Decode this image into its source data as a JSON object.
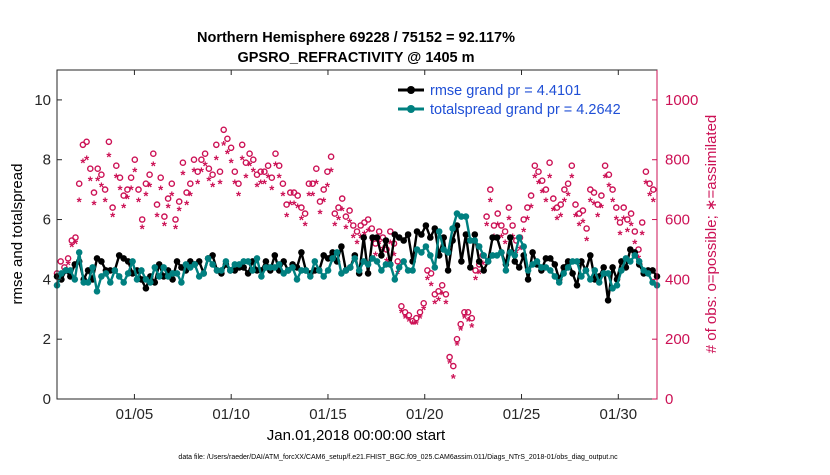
{
  "chart_data": {
    "type": "line",
    "title_line1": "Northern Hemisphere 69228 / 75152 = 92.117%",
    "title_line2": "GPSRO_REFRACTIVITY @ 1405 m",
    "ylabel_left": "rmse and totalspread",
    "ylabel_right": "# of obs: o=possible; ∗=assimilated",
    "xlabel": "Jan.01,2018 00:00:00 start",
    "footnote": "data file: /Users/raeder/DAI/ATM_forcXX/CAM6_setup/f.e21.FHIST_BGC.f09_025.CAM6assim.011/Diags_NTrS_2018-01/obs_diag_output.nc",
    "x_range_days": [
      0,
      31
    ],
    "x_tick_days": [
      4,
      9,
      14,
      19,
      24,
      29
    ],
    "x_tick_labels": [
      "01/05",
      "01/10",
      "01/15",
      "01/20",
      "01/25",
      "01/30"
    ],
    "ylim_left": [
      0,
      11
    ],
    "y_ticks_left": [
      0,
      2,
      4,
      6,
      8,
      10
    ],
    "ylim_right": [
      0,
      1100
    ],
    "y_ticks_right": [
      0,
      200,
      400,
      600,
      800,
      1000
    ],
    "legend": [
      {
        "name": "rmse grand pr = 4.4101",
        "color": "#000000"
      },
      {
        "name": "totalspread grand pr = 4.2642",
        "color": "#008080"
      }
    ],
    "colors": {
      "rmse": "#000000",
      "spread": "#008080",
      "obs": "#cc1155",
      "legend_text": "#1f4fd6"
    },
    "series": [
      {
        "name": "rmse",
        "axis": "left",
        "values": [
          4.1,
          4.0,
          4.3,
          4.1,
          4.5,
          4.6,
          4.0,
          4.3,
          4.0,
          4.7,
          4.6,
          4.3,
          4.3,
          4.3,
          4.8,
          4.7,
          4.6,
          4.2,
          4.3,
          4.0,
          3.7,
          4.1,
          3.9,
          4.5,
          4.1,
          4.3,
          4.0,
          4.6,
          4.4,
          4.3,
          4.6,
          4.5,
          4.6,
          4.2,
          4.7,
          4.8,
          4.3,
          4.2,
          4.5,
          4.3,
          4.3,
          4.4,
          4.4,
          4.2,
          4.6,
          4.3,
          4.3,
          4.6,
          4.3,
          4.8,
          4.3,
          4.6,
          4.3,
          4.5,
          4.4,
          4.9,
          4.3,
          4.2,
          4.3,
          4.3,
          4.8,
          4.7,
          4.9,
          4.6,
          5.1,
          4.3,
          4.4,
          4.8,
          4.2,
          5.4,
          4.2,
          5.4,
          5.4,
          4.8,
          5.3,
          4.5,
          5.5,
          5.4,
          5.3,
          5.5,
          4.6,
          5.6,
          5.5,
          5.8,
          5.4,
          5.7,
          4.8,
          5.4,
          4.3,
          5.3,
          5.8,
          4.6,
          5.5,
          4.4,
          5.5,
          4.6,
          4.3,
          4.6,
          5.4,
          5.4,
          4.9,
          4.5,
          5.4,
          4.6,
          4.4,
          4.8,
          4.0,
          4.9,
          4.5,
          4.3,
          4.7,
          4.7,
          4.5,
          4.0,
          4.4,
          4.6,
          4.2,
          3.8,
          4.6,
          4.3,
          4.8,
          4.0,
          4.1,
          4.4,
          3.3,
          4.4,
          4.0,
          4.6,
          4.4,
          5.0,
          4.9,
          4.5,
          4.2,
          4.3,
          4.3,
          4.1
        ]
      },
      {
        "name": "totalspread",
        "axis": "left",
        "values": [
          3.8,
          4.2,
          4.3,
          4.3,
          4.0,
          4.9,
          3.9,
          3.9,
          4.4,
          3.6,
          4.1,
          4.2,
          3.9,
          4.3,
          4.1,
          3.9,
          4.2,
          4.6,
          4.0,
          4.3,
          4.0,
          3.9,
          4.4,
          4.1,
          4.4,
          4.1,
          4.2,
          4.2,
          3.9,
          4.5,
          4.4,
          4.5,
          4.1,
          4.2,
          4.7,
          4.5,
          4.3,
          4.3,
          4.6,
          4.3,
          4.5,
          4.5,
          4.6,
          4.6,
          4.3,
          4.7,
          4.1,
          4.4,
          4.4,
          4.4,
          4.5,
          4.2,
          4.3,
          4.4,
          4.0,
          4.3,
          4.3,
          4.1,
          4.6,
          4.3,
          4.1,
          4.3,
          4.7,
          4.9,
          4.2,
          4.3,
          4.4,
          4.7,
          4.3,
          4.6,
          4.5,
          4.7,
          4.6,
          4.3,
          4.5,
          4.5,
          4.0,
          4.4,
          4.6,
          4.3,
          4.3,
          5.0,
          4.9,
          5.1,
          4.8,
          4.4,
          5.6,
          5.0,
          4.9,
          5.7,
          6.2,
          6.1,
          6.1,
          5.3,
          5.3,
          5.1,
          4.8,
          4.6,
          4.8,
          4.8,
          4.9,
          4.3,
          4.9,
          4.8,
          5.4,
          5.1,
          4.3,
          4.5,
          4.6,
          4.4,
          4.4,
          4.3,
          4.1,
          3.9,
          4.2,
          4.4,
          4.6,
          4.6,
          4.1,
          4.3,
          4.0,
          4.3,
          3.9,
          4.2,
          4.2,
          3.7,
          3.8,
          4.3,
          4.7,
          4.6,
          4.8,
          4.6,
          4.3,
          4.2,
          3.9,
          3.8
        ]
      },
      {
        "name": "obs possible (o)",
        "axis": "right",
        "marker": "circle",
        "values": [
          420,
          460,
          440,
          470,
          530,
          540,
          720,
          850,
          860,
          770,
          690,
          770,
          750,
          700,
          860,
          640,
          780,
          740,
          680,
          700,
          740,
          800,
          700,
          600,
          720,
          750,
          820,
          650,
          740,
          610,
          670,
          720,
          600,
          660,
          790,
          690,
          720,
          800,
          760,
          800,
          820,
          770,
          750,
          850,
          760,
          900,
          870,
          840,
          760,
          720,
          850,
          790,
          820,
          800,
          750,
          760,
          760,
          780,
          740,
          820,
          780,
          720,
          650,
          690,
          690,
          680,
          640,
          620,
          720,
          720,
          770,
          660,
          700,
          760,
          810,
          620,
          640,
          670,
          610,
          630,
          580,
          560,
          580,
          590,
          600,
          570,
          520,
          560,
          540,
          500,
          560,
          520,
          460,
          310,
          290,
          280,
          260,
          270,
          290,
          320,
          430,
          420,
          350,
          360,
          380,
          350,
          140,
          110,
          200,
          250,
          290,
          290,
          270,
          430,
          450,
          480,
          610,
          700,
          580,
          620,
          580,
          560,
          640,
          580,
          530,
          540,
          600,
          640,
          680,
          780,
          760,
          730,
          700,
          790,
          670,
          640,
          650,
          700,
          720,
          780,
          650,
          620,
          630,
          570,
          700,
          690,
          650,
          680,
          780,
          750,
          700,
          640,
          590,
          640,
          600,
          620,
          560,
          500,
          590,
          760,
          720,
          700
        ]
      },
      {
        "name": "obs assimilated (∗)",
        "axis": "right",
        "marker": "asterisk",
        "values": [
          380,
          410,
          420,
          450,
          510,
          520,
          660,
          790,
          800,
          730,
          650,
          730,
          710,
          660,
          810,
          610,
          740,
          700,
          640,
          670,
          700,
          760,
          660,
          570,
          680,
          710,
          780,
          610,
          700,
          580,
          640,
          680,
          570,
          630,
          750,
          650,
          680,
          760,
          720,
          760,
          780,
          730,
          710,
          800,
          720,
          850,
          820,
          790,
          720,
          680,
          800,
          740,
          780,
          760,
          710,
          720,
          720,
          740,
          700,
          780,
          740,
          680,
          610,
          650,
          650,
          640,
          600,
          580,
          680,
          680,
          720,
          620,
          660,
          710,
          760,
          580,
          600,
          630,
          570,
          590,
          540,
          520,
          540,
          550,
          560,
          530,
          480,
          520,
          500,
          460,
          520,
          480,
          420,
          290,
          270,
          260,
          250,
          250,
          270,
          300,
          400,
          380,
          320,
          330,
          350,
          320,
          120,
          70,
          180,
          230,
          270,
          260,
          240,
          400,
          420,
          450,
          580,
          660,
          540,
          580,
          540,
          520,
          600,
          540,
          490,
          500,
          560,
          600,
          640,
          740,
          720,
          690,
          660,
          740,
          630,
          600,
          610,
          660,
          680,
          740,
          610,
          580,
          590,
          530,
          660,
          650,
          610,
          640,
          740,
          710,
          660,
          600,
          550,
          600,
          560,
          580,
          520,
          470,
          550,
          720,
          680,
          660
        ]
      }
    ]
  }
}
